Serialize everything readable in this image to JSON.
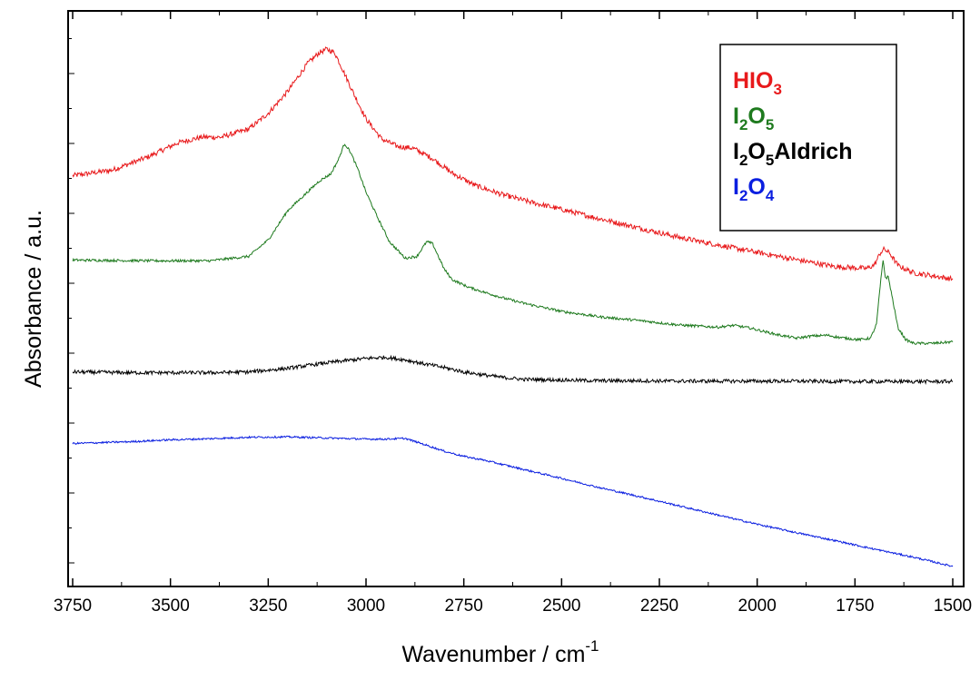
{
  "chart_data": {
    "type": "line",
    "xlabel": "Wavenumber / cm",
    "xlabel_superscript": "-1",
    "ylabel": "Absorbance / a.u.",
    "xlim": [
      3750,
      1500
    ],
    "x_reversed": true,
    "x_ticks": [
      "3750",
      "3500",
      "3250",
      "3000",
      "2750",
      "2500",
      "2250",
      "2000",
      "1750",
      "1500"
    ],
    "y_tick_labels": false,
    "grid": false,
    "legend": {
      "position": "top-right",
      "entries": [
        {
          "base": "HIO",
          "sub": "3",
          "color": "#e8191b"
        },
        {
          "base": "I",
          "sub": "2",
          "base2": "O",
          "sub2": "5",
          "color": "#1e7a1e"
        },
        {
          "base": "I",
          "sub": "2",
          "base2": "O",
          "sub2": "5",
          "suffix": "Aldrich",
          "color": "#000000"
        },
        {
          "base": "I",
          "sub": "2",
          "base2": "O",
          "sub2": "4",
          "color": "#0a1ee0"
        }
      ]
    },
    "series": [
      {
        "name": "HIO3",
        "color": "#e8191b",
        "noise": 0.007,
        "x": [
          3750,
          3650,
          3560,
          3480,
          3420,
          3370,
          3300,
          3250,
          3200,
          3150,
          3120,
          3100,
          3080,
          3060,
          3030,
          3000,
          2960,
          2920,
          2880,
          2830,
          2780,
          2720,
          2650,
          2580,
          2500,
          2400,
          2300,
          2200,
          2100,
          2000,
          1900,
          1800,
          1720,
          1700,
          1685,
          1675,
          1660,
          1640,
          1600,
          1550,
          1500
        ],
        "y": [
          0.735,
          0.75,
          0.785,
          0.825,
          0.84,
          0.84,
          0.862,
          0.905,
          0.965,
          1.04,
          1.07,
          1.08,
          1.07,
          1.025,
          0.955,
          0.89,
          0.835,
          0.815,
          0.81,
          0.782,
          0.742,
          0.708,
          0.683,
          0.663,
          0.643,
          0.617,
          0.592,
          0.567,
          0.546,
          0.526,
          0.506,
          0.487,
          0.482,
          0.492,
          0.525,
          0.535,
          0.522,
          0.49,
          0.47,
          0.462,
          0.453
        ]
      },
      {
        "name": "I2O5",
        "color": "#1e7a1e",
        "noise": 0.0035,
        "x": [
          3750,
          3550,
          3400,
          3300,
          3250,
          3200,
          3150,
          3120,
          3090,
          3070,
          3055,
          3040,
          3020,
          3000,
          2970,
          2940,
          2900,
          2870,
          2845,
          2830,
          2815,
          2800,
          2780,
          2740,
          2700,
          2650,
          2600,
          2500,
          2400,
          2300,
          2200,
          2100,
          2060,
          2020,
          1950,
          1900,
          1860,
          1820,
          1790,
          1740,
          1710,
          1695,
          1685,
          1678,
          1672,
          1665,
          1655,
          1640,
          1620,
          1600,
          1550,
          1500
        ],
        "y": [
          0.505,
          0.503,
          0.503,
          0.515,
          0.56,
          0.64,
          0.69,
          0.72,
          0.74,
          0.78,
          0.823,
          0.8,
          0.75,
          0.69,
          0.62,
          0.555,
          0.51,
          0.515,
          0.555,
          0.55,
          0.515,
          0.48,
          0.452,
          0.432,
          0.418,
          0.402,
          0.388,
          0.365,
          0.35,
          0.34,
          0.328,
          0.322,
          0.327,
          0.32,
          0.302,
          0.292,
          0.298,
          0.3,
          0.294,
          0.288,
          0.292,
          0.33,
          0.44,
          0.505,
          0.455,
          0.46,
          0.405,
          0.32,
          0.288,
          0.278,
          0.278,
          0.282
        ]
      },
      {
        "name": "I2O5Aldrich",
        "color": "#000000",
        "noise": 0.005,
        "x": [
          3750,
          3600,
          3400,
          3300,
          3200,
          3100,
          3000,
          2950,
          2900,
          2850,
          2800,
          2750,
          2700,
          2650,
          2600,
          2500,
          2400,
          2300,
          2200,
          2100,
          2000,
          1900,
          1800,
          1700,
          1600,
          1500
        ],
        "y": [
          0.2,
          0.198,
          0.198,
          0.2,
          0.21,
          0.225,
          0.237,
          0.24,
          0.233,
          0.222,
          0.212,
          0.2,
          0.192,
          0.185,
          0.18,
          0.178,
          0.176,
          0.176,
          0.175,
          0.175,
          0.175,
          0.175,
          0.174,
          0.174,
          0.174,
          0.174
        ]
      },
      {
        "name": "I2O4",
        "color": "#0a1ee0",
        "noise": 0.0025,
        "x": [
          3750,
          3600,
          3500,
          3400,
          3300,
          3200,
          3100,
          3000,
          2950,
          2900,
          2850,
          2800,
          2750,
          2700,
          2600,
          2500,
          2400,
          2300,
          2200,
          2100,
          2000,
          1900,
          1800,
          1700,
          1600,
          1500
        ],
        "y": [
          0.005,
          0.01,
          0.015,
          0.018,
          0.022,
          0.023,
          0.02,
          0.017,
          0.017,
          0.019,
          0.002,
          -0.016,
          -0.03,
          -0.04,
          -0.065,
          -0.09,
          -0.116,
          -0.14,
          -0.165,
          -0.19,
          -0.215,
          -0.238,
          -0.26,
          -0.283,
          -0.305,
          -0.33
        ]
      }
    ]
  }
}
